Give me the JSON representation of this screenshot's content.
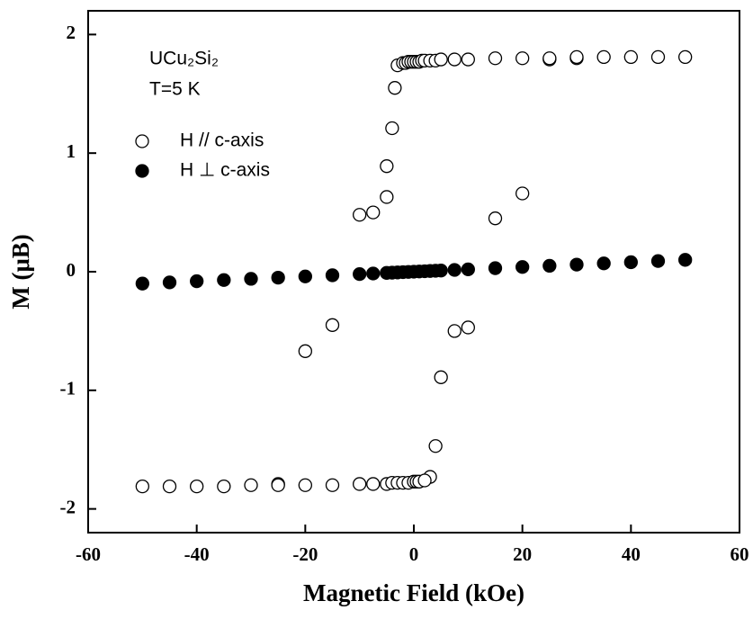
{
  "chart_data": {
    "type": "scatter",
    "annotations": [
      "UCu₂Si₂",
      "T=5 K"
    ],
    "x_label": "Magnetic Field  (kOe)",
    "y_label": "M  (μB)",
    "xlim": [
      -60,
      60
    ],
    "xticks": [
      -60,
      -40,
      -20,
      0,
      20,
      40,
      60
    ],
    "ylim": [
      -2.2,
      2.2
    ],
    "yticks": [
      -2,
      -1,
      0,
      1,
      2
    ],
    "legend": "upper left",
    "series": [
      {
        "name": "H // c-axis",
        "color": "#000000",
        "filled": false,
        "x": [
          -3,
          -2,
          -1.5,
          -1,
          -0.5,
          0,
          0.5,
          1,
          1.5,
          2,
          3,
          4,
          5,
          7.5,
          10,
          15,
          20,
          25,
          25,
          30,
          30,
          35,
          40,
          45,
          50,
          -3.5,
          -4,
          -5,
          -5,
          -7.5,
          -10,
          15,
          20,
          -20,
          -15,
          7.5,
          10,
          5,
          4,
          3,
          -50,
          -45,
          -40,
          -35,
          -30,
          -25,
          -25,
          -20,
          -15,
          -10,
          -7.5,
          -5,
          -4,
          -3,
          -2,
          -1,
          0,
          0.5,
          1,
          2
        ],
        "values": [
          1.74,
          1.76,
          1.76,
          1.77,
          1.77,
          1.77,
          1.77,
          1.77,
          1.78,
          1.78,
          1.78,
          1.78,
          1.79,
          1.79,
          1.79,
          1.8,
          1.8,
          1.79,
          1.8,
          1.8,
          1.81,
          1.81,
          1.81,
          1.81,
          1.81,
          1.55,
          1.21,
          0.89,
          0.63,
          0.5,
          0.48,
          0.45,
          0.66,
          -0.67,
          -0.45,
          -0.5,
          -0.47,
          -0.89,
          -1.47,
          -1.73,
          -1.81,
          -1.81,
          -1.81,
          -1.81,
          -1.8,
          -1.79,
          -1.8,
          -1.8,
          -1.8,
          -1.79,
          -1.79,
          -1.79,
          -1.78,
          -1.78,
          -1.78,
          -1.78,
          -1.77,
          -1.77,
          -1.77,
          -1.76
        ]
      },
      {
        "name": "H ⊥ c-axis",
        "color": "#000000",
        "filled": true,
        "x": [
          -50,
          -45,
          -40,
          -35,
          -30,
          -25,
          -20,
          -15,
          -10,
          -7.5,
          -5,
          -4,
          -3,
          -2,
          -1,
          0,
          1,
          2,
          3,
          4,
          5,
          7.5,
          10,
          15,
          20,
          25,
          30,
          35,
          40,
          45,
          50
        ],
        "values": [
          -0.1,
          -0.09,
          -0.08,
          -0.07,
          -0.06,
          -0.05,
          -0.04,
          -0.03,
          -0.02,
          -0.015,
          -0.01,
          -0.008,
          -0.006,
          -0.004,
          -0.002,
          0,
          0.002,
          0.004,
          0.006,
          0.008,
          0.01,
          0.015,
          0.02,
          0.03,
          0.04,
          0.05,
          0.06,
          0.07,
          0.08,
          0.09,
          0.1
        ]
      }
    ]
  }
}
